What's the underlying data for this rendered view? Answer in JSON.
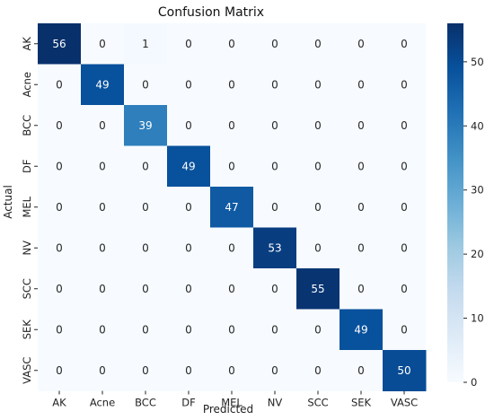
{
  "chart_data": {
    "type": "heatmap",
    "title": "Confusion Matrix",
    "xlabel": "Predicted",
    "ylabel": "Actual",
    "x_categories": [
      "AK",
      "Acne",
      "BCC",
      "DF",
      "MEL",
      "NV",
      "SCC",
      "SEK",
      "VASC"
    ],
    "y_categories": [
      "AK",
      "Acne",
      "BCC",
      "DF",
      "MEL",
      "NV",
      "SCC",
      "SEK",
      "VASC"
    ],
    "matrix": [
      [
        56,
        0,
        1,
        0,
        0,
        0,
        0,
        0,
        0
      ],
      [
        0,
        49,
        0,
        0,
        0,
        0,
        0,
        0,
        0
      ],
      [
        0,
        0,
        39,
        0,
        0,
        0,
        0,
        0,
        0
      ],
      [
        0,
        0,
        0,
        49,
        0,
        0,
        0,
        0,
        0
      ],
      [
        0,
        0,
        0,
        0,
        47,
        0,
        0,
        0,
        0
      ],
      [
        0,
        0,
        0,
        0,
        0,
        53,
        0,
        0,
        0
      ],
      [
        0,
        0,
        0,
        0,
        0,
        0,
        55,
        0,
        0
      ],
      [
        0,
        0,
        0,
        0,
        0,
        0,
        0,
        49,
        0
      ],
      [
        0,
        0,
        0,
        0,
        0,
        0,
        0,
        0,
        50
      ]
    ],
    "colorscale": "Blues",
    "color_range": [
      0,
      56
    ],
    "colorbar_ticks": [
      0,
      10,
      20,
      30,
      40,
      50
    ],
    "grid": false
  }
}
